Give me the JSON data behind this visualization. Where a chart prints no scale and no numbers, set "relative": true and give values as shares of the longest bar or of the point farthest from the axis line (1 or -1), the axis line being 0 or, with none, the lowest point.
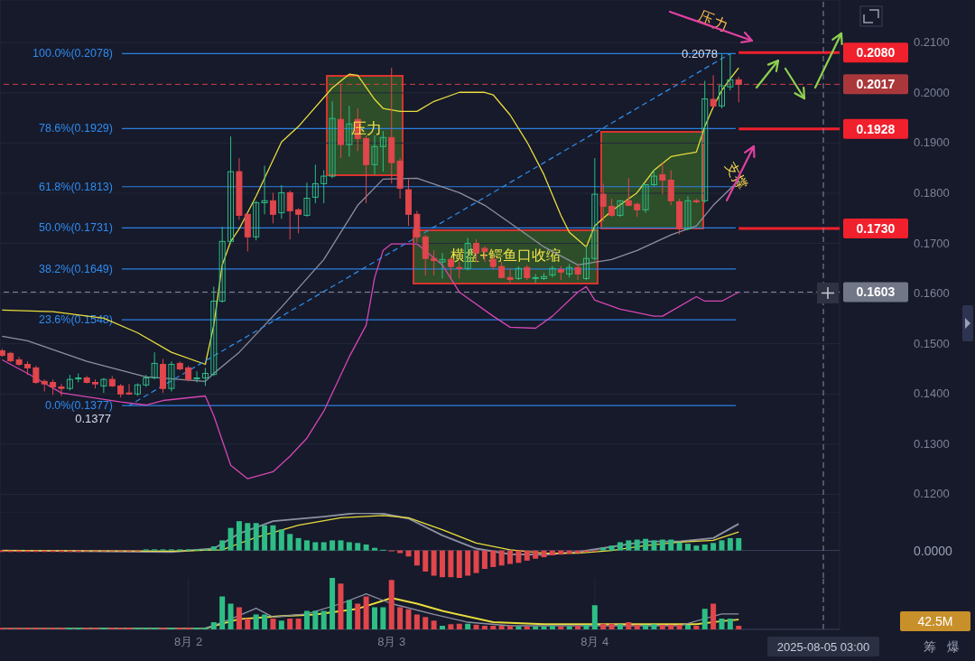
{
  "chart_data": [
    {
      "type": "candlestick",
      "tick_labels": "y",
      "grid": true,
      "xlim": [
        "2025-08-01T01:45",
        "2025-08-05T04:55"
      ],
      "xticks": [
        {
          "value": "2025-08-02",
          "label": null
        },
        {
          "value": "2025-08-03",
          "label": null
        },
        {
          "value": "2025-08-04",
          "label": null
        }
      ],
      "ylim": [
        0.1163,
        0.2185
      ],
      "yticks": [
        {
          "value": 0.12,
          "label": "0.1200"
        },
        {
          "value": 0.13,
          "label": "0.1300"
        },
        {
          "value": 0.14,
          "label": "0.1400"
        },
        {
          "value": 0.15,
          "label": "0.1500"
        },
        {
          "value": 0.16,
          "label": "0.1600"
        },
        {
          "value": 0.17,
          "label": "0.1700"
        },
        {
          "value": 0.18,
          "label": "0.1800"
        },
        {
          "value": 0.19,
          "label": "0.1900"
        },
        {
          "value": 0.2,
          "label": "0.2000"
        },
        {
          "value": 0.21,
          "label": "0.2100"
        }
      ],
      "x": [
        "2025-08-01T02:00",
        "2025-08-01T03:00",
        "2025-08-01T04:00",
        "2025-08-01T05:00",
        "2025-08-01T06:00",
        "2025-08-01T07:00",
        "2025-08-01T08:00",
        "2025-08-01T09:00",
        "2025-08-01T10:00",
        "2025-08-01T11:00",
        "2025-08-01T12:00",
        "2025-08-01T13:00",
        "2025-08-01T14:00",
        "2025-08-01T15:00",
        "2025-08-01T16:00",
        "2025-08-01T17:00",
        "2025-08-01T18:00",
        "2025-08-01T19:00",
        "2025-08-01T20:00",
        "2025-08-01T21:00",
        "2025-08-01T22:00",
        "2025-08-01T23:00",
        "2025-08-02T00:00",
        "2025-08-02T01:00",
        "2025-08-02T02:00",
        "2025-08-02T03:00",
        "2025-08-02T04:00",
        "2025-08-02T05:00",
        "2025-08-02T06:00",
        "2025-08-02T07:00",
        "2025-08-02T08:00",
        "2025-08-02T09:00",
        "2025-08-02T10:00",
        "2025-08-02T11:00",
        "2025-08-02T12:00",
        "2025-08-02T13:00",
        "2025-08-02T14:00",
        "2025-08-02T15:00",
        "2025-08-02T16:00",
        "2025-08-02T17:00",
        "2025-08-02T18:00",
        "2025-08-02T19:00",
        "2025-08-02T20:00",
        "2025-08-02T21:00",
        "2025-08-02T22:00",
        "2025-08-02T23:00",
        "2025-08-03T00:00",
        "2025-08-03T01:00",
        "2025-08-03T02:00",
        "2025-08-03T03:00",
        "2025-08-03T04:00",
        "2025-08-03T05:00",
        "2025-08-03T06:00",
        "2025-08-03T07:00",
        "2025-08-03T08:00",
        "2025-08-03T09:00",
        "2025-08-03T10:00",
        "2025-08-03T11:00",
        "2025-08-03T12:00",
        "2025-08-03T13:00",
        "2025-08-03T14:00",
        "2025-08-03T15:00",
        "2025-08-03T16:00",
        "2025-08-03T17:00",
        "2025-08-03T18:00",
        "2025-08-03T19:00",
        "2025-08-03T20:00",
        "2025-08-03T21:00",
        "2025-08-03T22:00",
        "2025-08-03T23:00",
        "2025-08-04T00:00",
        "2025-08-04T01:00",
        "2025-08-04T02:00",
        "2025-08-04T03:00",
        "2025-08-04T04:00",
        "2025-08-04T05:00",
        "2025-08-04T06:00",
        "2025-08-04T07:00",
        "2025-08-04T08:00",
        "2025-08-04T09:00",
        "2025-08-04T10:00",
        "2025-08-04T11:00",
        "2025-08-04T12:00",
        "2025-08-04T13:00",
        "2025-08-04T14:00",
        "2025-08-04T15:00",
        "2025-08-04T16:00",
        "2025-08-04T17:00"
      ],
      "ohlc": [
        [
          0.1486,
          0.149,
          0.1474,
          0.1477
        ],
        [
          0.1481,
          0.1484,
          0.1463,
          0.1466
        ],
        [
          0.1468,
          0.1474,
          0.1456,
          0.1459
        ],
        [
          0.1459,
          0.1465,
          0.1438,
          0.1452
        ],
        [
          0.1452,
          0.1456,
          0.142,
          0.1423
        ],
        [
          0.1425,
          0.1429,
          0.1405,
          0.142
        ],
        [
          0.1423,
          0.1429,
          0.1398,
          0.1414
        ],
        [
          0.1414,
          0.142,
          0.1396,
          0.1411
        ],
        [
          0.1411,
          0.1438,
          0.1407,
          0.1429
        ],
        [
          0.143,
          0.1441,
          0.1423,
          0.1432
        ],
        [
          0.1432,
          0.1436,
          0.1421,
          0.1423
        ],
        [
          0.1423,
          0.1429,
          0.1411,
          0.142
        ],
        [
          0.1416,
          0.1432,
          0.1402,
          0.1429
        ],
        [
          0.1429,
          0.1436,
          0.1414,
          0.1416
        ],
        [
          0.1416,
          0.142,
          0.1393,
          0.14
        ],
        [
          0.1402,
          0.142,
          0.1398,
          0.14
        ],
        [
          0.14,
          0.1421,
          0.1396,
          0.1418
        ],
        [
          0.1418,
          0.1438,
          0.1414,
          0.1432
        ],
        [
          0.1432,
          0.1483,
          0.1429,
          0.1461
        ],
        [
          0.1459,
          0.147,
          0.1402,
          0.1411
        ],
        [
          0.1411,
          0.1465,
          0.1405,
          0.1459
        ],
        [
          0.1461,
          0.1465,
          0.1447,
          0.145
        ],
        [
          0.1452,
          0.1456,
          0.1425,
          0.1429
        ],
        [
          0.143,
          0.1445,
          0.1423,
          0.1432
        ],
        [
          0.1432,
          0.1452,
          0.1416,
          0.1441
        ],
        [
          0.1439,
          0.1614,
          0.1436,
          0.1585
        ],
        [
          0.1585,
          0.1733,
          0.1582,
          0.1704
        ],
        [
          0.1704,
          0.1913,
          0.1699,
          0.1843
        ],
        [
          0.1843,
          0.187,
          0.1747,
          0.1756
        ],
        [
          0.1758,
          0.1761,
          0.1684,
          0.1713
        ],
        [
          0.1713,
          0.1785,
          0.1706,
          0.1781
        ],
        [
          0.1781,
          0.1855,
          0.1758,
          0.1785
        ],
        [
          0.1785,
          0.1801,
          0.174,
          0.1758
        ],
        [
          0.1761,
          0.1816,
          0.1749,
          0.1801
        ],
        [
          0.1801,
          0.1805,
          0.1708,
          0.1765
        ],
        [
          0.1767,
          0.177,
          0.172,
          0.1758
        ],
        [
          0.1756,
          0.1821,
          0.1753,
          0.179
        ],
        [
          0.1792,
          0.1857,
          0.178,
          0.1819
        ],
        [
          0.1819,
          0.1846,
          0.178,
          0.1834
        ],
        [
          0.1834,
          0.1983,
          0.183,
          0.1949
        ],
        [
          0.1947,
          0.2017,
          0.187,
          0.1897
        ],
        [
          0.1897,
          0.1974,
          0.1873,
          0.1938
        ],
        [
          0.1947,
          0.1969,
          0.1884,
          0.1909
        ],
        [
          0.1909,
          0.1915,
          0.178,
          0.1857
        ],
        [
          0.1857,
          0.1915,
          0.1837,
          0.1893
        ],
        [
          0.1893,
          0.1924,
          0.1843,
          0.1911
        ],
        [
          0.1911,
          0.205,
          0.1819,
          0.1861
        ],
        [
          0.1864,
          0.187,
          0.1789,
          0.181
        ],
        [
          0.1807,
          0.1828,
          0.1735,
          0.1758
        ],
        [
          0.1758,
          0.1765,
          0.1702,
          0.1713
        ],
        [
          0.1713,
          0.1717,
          0.1636,
          0.167
        ],
        [
          0.167,
          0.1686,
          0.1636,
          0.1666
        ],
        [
          0.1663,
          0.1681,
          0.163,
          0.1668
        ],
        [
          0.1668,
          0.1672,
          0.163,
          0.1654
        ],
        [
          0.1652,
          0.1663,
          0.163,
          0.165
        ],
        [
          0.165,
          0.1711,
          0.1646,
          0.17
        ],
        [
          0.17,
          0.1708,
          0.1663,
          0.1681
        ],
        [
          0.169,
          0.1695,
          0.1663,
          0.1684
        ],
        [
          0.1668,
          0.1675,
          0.1648,
          0.1654
        ],
        [
          0.1654,
          0.1663,
          0.163,
          0.1632
        ],
        [
          0.1632,
          0.165,
          0.1621,
          0.1628
        ],
        [
          0.163,
          0.1654,
          0.1627,
          0.165
        ],
        [
          0.1652,
          0.1657,
          0.1627,
          0.1632
        ],
        [
          0.163,
          0.1639,
          0.1621,
          0.1632
        ],
        [
          0.163,
          0.1641,
          0.1627,
          0.1634
        ],
        [
          0.1637,
          0.1655,
          0.1632,
          0.165
        ],
        [
          0.1648,
          0.1655,
          0.1627,
          0.1643
        ],
        [
          0.1639,
          0.1659,
          0.1632,
          0.1652
        ],
        [
          0.1652,
          0.1659,
          0.1627,
          0.1639
        ],
        [
          0.163,
          0.1695,
          0.1627,
          0.167
        ],
        [
          0.167,
          0.187,
          0.1666,
          0.1798
        ],
        [
          0.1798,
          0.1819,
          0.1744,
          0.1774
        ],
        [
          0.1774,
          0.1789,
          0.1753,
          0.1756
        ],
        [
          0.1756,
          0.1785,
          0.1753,
          0.1785
        ],
        [
          0.1785,
          0.183,
          0.1774,
          0.1776
        ],
        [
          0.1778,
          0.1781,
          0.1753,
          0.1767
        ],
        [
          0.1767,
          0.1817,
          0.1761,
          0.1817
        ],
        [
          0.1817,
          0.1848,
          0.1814,
          0.1834
        ],
        [
          0.1837,
          0.1861,
          0.1798,
          0.1826
        ],
        [
          0.1826,
          0.1846,
          0.1776,
          0.1785
        ],
        [
          0.1783,
          0.1789,
          0.1718,
          0.1729
        ],
        [
          0.1729,
          0.1794,
          0.1726,
          0.1785
        ],
        [
          0.1785,
          0.1789,
          0.178,
          0.1783
        ],
        [
          0.1785,
          0.2024,
          0.1781,
          0.1988
        ],
        [
          0.1987,
          0.2035,
          0.1969,
          0.1974
        ],
        [
          0.1974,
          0.2077,
          0.1969,
          0.2014
        ],
        [
          0.2012,
          0.2078,
          0.2005,
          0.2026
        ],
        [
          0.2026,
          0.2032,
          0.1981,
          0.2017
        ]
      ],
      "series": [
        {
          "type": "line",
          "color": "#e8dc3c",
          "x": [
            "2025-08-01T02:00",
            "2025-08-01T08:00",
            "2025-08-01T14:00",
            "2025-08-01T18:00",
            "2025-08-01T22:00",
            "2025-08-02T02:00",
            "2025-08-02T03:00",
            "2025-08-02T04:00",
            "2025-08-02T05:00",
            "2025-08-02T06:00",
            "2025-08-02T08:00",
            "2025-08-02T11:00",
            "2025-08-02T13:00",
            "2025-08-02T17:00",
            "2025-08-02T19:00",
            "2025-08-02T20:00",
            "2025-08-02T22:00",
            "2025-08-02T23:00",
            "2025-08-03T01:00",
            "2025-08-03T03:00",
            "2025-08-03T05:00",
            "2025-08-03T08:00",
            "2025-08-03T11:00",
            "2025-08-03T12:00",
            "2025-08-03T14:00",
            "2025-08-03T16:00",
            "2025-08-03T18:00",
            "2025-08-03T20:00",
            "2025-08-03T21:00",
            "2025-08-03T23:00",
            "2025-08-04T00:00",
            "2025-08-04T02:00",
            "2025-08-04T05:00",
            "2025-08-04T07:00",
            "2025-08-04T09:00",
            "2025-08-04T12:00",
            "2025-08-04T13:00",
            "2025-08-04T14:00",
            "2025-08-04T15:00",
            "2025-08-04T16:00",
            "2025-08-04T17:00"
          ],
          "values": [
            0.1567,
            0.1564,
            0.1551,
            0.1522,
            0.1483,
            0.1459,
            0.1537,
            0.1657,
            0.1704,
            0.1729,
            0.1794,
            0.1902,
            0.1933,
            0.201,
            0.2037,
            0.2035,
            0.1987,
            0.1969,
            0.1963,
            0.1963,
            0.1983,
            0.2001,
            0.2001,
            0.1996,
            0.1956,
            0.1902,
            0.1837,
            0.1756,
            0.1722,
            0.1693,
            0.1735,
            0.1765,
            0.1801,
            0.1846,
            0.1873,
            0.1882,
            0.1933,
            0.1972,
            0.2005,
            0.2028,
            0.205
          ]
        },
        {
          "type": "line",
          "color": "#8c90a0",
          "x": [
            "2025-08-01T02:00",
            "2025-08-01T05:00",
            "2025-08-01T12:00",
            "2025-08-01T19:00",
            "2025-08-02T02:00",
            "2025-08-02T03:00",
            "2025-08-02T06:00",
            "2025-08-02T07:00",
            "2025-08-02T11:00",
            "2025-08-02T16:00",
            "2025-08-02T20:00",
            "2025-08-02T23:00",
            "2025-08-03T03:00",
            "2025-08-03T08:00",
            "2025-08-03T11:00",
            "2025-08-03T15:00",
            "2025-08-03T18:00",
            "2025-08-03T22:00",
            "2025-08-04T02:00",
            "2025-08-04T05:00",
            "2025-08-04T09:00",
            "2025-08-04T12:00",
            "2025-08-04T14:00",
            "2025-08-04T17:00"
          ],
          "values": [
            0.1515,
            0.1506,
            0.1465,
            0.1434,
            0.1425,
            0.1441,
            0.1483,
            0.1501,
            0.1573,
            0.1668,
            0.1776,
            0.1828,
            0.183,
            0.1801,
            0.1776,
            0.1729,
            0.1693,
            0.1657,
            0.1668,
            0.1686,
            0.1717,
            0.1735,
            0.1776,
            0.1825
          ]
        },
        {
          "type": "line",
          "color": "#d646b4",
          "x": [
            "2025-08-01T02:00",
            "2025-08-01T05:00",
            "2025-08-01T09:00",
            "2025-08-01T16:00",
            "2025-08-01T19:00",
            "2025-08-01T21:00",
            "2025-08-02T02:00",
            "2025-08-02T03:00",
            "2025-08-02T05:00",
            "2025-08-02T07:00",
            "2025-08-02T10:00",
            "2025-08-02T12:00",
            "2025-08-02T14:00",
            "2025-08-02T16:00",
            "2025-08-02T19:00",
            "2025-08-02T21:00",
            "2025-08-02T22:00",
            "2025-08-02T23:00",
            "2025-08-03T00:00",
            "2025-08-03T03:00",
            "2025-08-03T06:00",
            "2025-08-03T08:00",
            "2025-08-03T12:00",
            "2025-08-03T14:00",
            "2025-08-03T17:00",
            "2025-08-03T19:00",
            "2025-08-03T22:00",
            "2025-08-03T23:00",
            "2025-08-04T00:00",
            "2025-08-04T03:00",
            "2025-08-04T07:00",
            "2025-08-04T08:00",
            "2025-08-04T12:00",
            "2025-08-04T13:00",
            "2025-08-04T15:00",
            "2025-08-04T17:00"
          ],
          "values": [
            0.1468,
            0.1441,
            0.1402,
            0.1384,
            0.1378,
            0.1387,
            0.1396,
            0.1357,
            0.1258,
            0.1231,
            0.1245,
            0.1276,
            0.1312,
            0.1366,
            0.1474,
            0.1537,
            0.1632,
            0.1686,
            0.1699,
            0.1699,
            0.1657,
            0.1603,
            0.1555,
            0.1533,
            0.1531,
            0.1555,
            0.1603,
            0.1614,
            0.1587,
            0.1569,
            0.1555,
            0.1555,
            0.1594,
            0.1585,
            0.1585,
            0.1603
          ]
        },
        {
          "type": "line",
          "color": "#2f8be6",
          "line_style": "dashed",
          "x": [
            "2025-08-01T17:00",
            "2025-08-04T16:00"
          ],
          "values": [
            0.1377,
            0.2078
          ]
        }
      ],
      "ref_lines": [
        {
          "axis": "y",
          "value": 0.2078,
          "label": "100.0%(0.2078)",
          "color": "#2d7fe0"
        },
        {
          "axis": "y",
          "value": 0.1929,
          "label": "78.6%(0.1929)",
          "color": "#2d7fe0"
        },
        {
          "axis": "y",
          "value": 0.1813,
          "label": "61.8%(0.1813)",
          "color": "#2d7fe0"
        },
        {
          "axis": "y",
          "value": 0.1731,
          "label": "50.0%(0.1731)",
          "color": "#2d7fe0"
        },
        {
          "axis": "y",
          "value": 0.1649,
          "label": "38.2%(0.1649)",
          "color": "#2d7fe0"
        },
        {
          "axis": "y",
          "value": 0.1548,
          "label": "23.6%(0.1548)",
          "color": "#2d7fe0"
        },
        {
          "axis": "y",
          "value": 0.1377,
          "label": "0.0%(0.1377)",
          "color": "#2d7fe0"
        },
        {
          "axis": "y",
          "value": 0.208,
          "label": "0.2080",
          "color": "#f0202c"
        },
        {
          "axis": "y",
          "value": 0.1928,
          "label": "0.1928",
          "color": "#f0202c"
        },
        {
          "axis": "y",
          "value": 0.173,
          "label": "0.1730",
          "color": "#f0202c"
        },
        {
          "axis": "y",
          "value": 0.2017,
          "label": "0.2017",
          "color": "#d04040",
          "line_style": "dashed"
        },
        {
          "axis": "y",
          "value": 0.1603,
          "label": "0.1603",
          "color": "#8a8fa0",
          "line_style": "dashed"
        },
        {
          "axis": "x",
          "value": "2025-08-05T03:00",
          "color": "#8a8fa0",
          "line_style": "dashed"
        }
      ],
      "annotations": [
        {
          "text": "0.2078",
          "x": "2025-08-04T16:00",
          "y": 0.2078
        },
        {
          "text": "0.1377",
          "x": "2025-08-01T17:00",
          "y": 0.1377
        },
        {
          "text": "压力",
          "x": "2025-08-02T21:00",
          "y": 0.193
        },
        "横盘+鳄鱼口收缩",
        "压力",
        "支撑"
      ]
    },
    {
      "type": "bar",
      "relative": true,
      "tick_labels": false,
      "grid": "x",
      "xlim": [
        "2025-08-01T01:45",
        "2025-08-05T04:55"
      ],
      "xticks": [
        {
          "value": "2025-08-02",
          "label": null
        },
        {
          "value": "2025-08-03",
          "label": null
        },
        {
          "value": "2025-08-04",
          "label": null
        }
      ],
      "x": [
        "2025-08-01T02:00",
        "2025-08-01T03:00",
        "2025-08-01T04:00",
        "2025-08-01T05:00",
        "2025-08-01T06:00",
        "2025-08-01T07:00",
        "2025-08-01T08:00",
        "2025-08-01T09:00",
        "2025-08-01T10:00",
        "2025-08-01T11:00",
        "2025-08-01T12:00",
        "2025-08-01T13:00",
        "2025-08-01T14:00",
        "2025-08-01T15:00",
        "2025-08-01T16:00",
        "2025-08-01T17:00",
        "2025-08-01T18:00",
        "2025-08-01T19:00",
        "2025-08-01T20:00",
        "2025-08-01T21:00",
        "2025-08-01T22:00",
        "2025-08-01T23:00",
        "2025-08-02T00:00",
        "2025-08-02T01:00",
        "2025-08-02T02:00",
        "2025-08-02T03:00",
        "2025-08-02T04:00",
        "2025-08-02T05:00",
        "2025-08-02T06:00",
        "2025-08-02T07:00",
        "2025-08-02T08:00",
        "2025-08-02T09:00",
        "2025-08-02T10:00",
        "2025-08-02T11:00",
        "2025-08-02T12:00",
        "2025-08-02T13:00",
        "2025-08-02T14:00",
        "2025-08-02T15:00",
        "2025-08-02T16:00",
        "2025-08-02T17:00",
        "2025-08-02T18:00",
        "2025-08-02T19:00",
        "2025-08-02T20:00",
        "2025-08-02T21:00",
        "2025-08-02T22:00",
        "2025-08-02T23:00",
        "2025-08-03T00:00",
        "2025-08-03T01:00",
        "2025-08-03T02:00",
        "2025-08-03T03:00",
        "2025-08-03T04:00",
        "2025-08-03T05:00",
        "2025-08-03T06:00",
        "2025-08-03T07:00",
        "2025-08-03T08:00",
        "2025-08-03T09:00",
        "2025-08-03T10:00",
        "2025-08-03T11:00",
        "2025-08-03T12:00",
        "2025-08-03T13:00",
        "2025-08-03T14:00",
        "2025-08-03T15:00",
        "2025-08-03T16:00",
        "2025-08-03T17:00",
        "2025-08-03T18:00",
        "2025-08-03T19:00",
        "2025-08-03T20:00",
        "2025-08-03T21:00",
        "2025-08-03T22:00",
        "2025-08-03T23:00",
        "2025-08-04T00:00",
        "2025-08-04T01:00",
        "2025-08-04T02:00",
        "2025-08-04T03:00",
        "2025-08-04T04:00",
        "2025-08-04T05:00",
        "2025-08-04T06:00",
        "2025-08-04T07:00",
        "2025-08-04T08:00",
        "2025-08-04T09:00",
        "2025-08-04T10:00",
        "2025-08-04T11:00",
        "2025-08-04T12:00",
        "2025-08-04T13:00",
        "2025-08-04T14:00",
        "2025-08-04T15:00",
        "2025-08-04T16:00",
        "2025-08-04T17:00"
      ],
      "series": [
        {
          "type": "bar",
          "values": [
            -0.04,
            -0.04,
            -0.04,
            -0.04,
            -0.04,
            -0.04,
            -0.04,
            -0.04,
            -0.04,
            -0.04,
            -0.02,
            -0.02,
            -0.02,
            -0.02,
            -0.02,
            -0.02,
            -0.02,
            0.03,
            0.03,
            0.03,
            0.03,
            0.03,
            0.03,
            0.03,
            0.03,
            0.11,
            0.27,
            0.6,
            0.78,
            0.73,
            0.73,
            0.67,
            0.67,
            0.56,
            0.44,
            0.33,
            0.27,
            0.22,
            0.22,
            0.27,
            0.27,
            0.22,
            0.2,
            0.16,
            0.07,
            0.02,
            -0.02,
            -0.07,
            -0.16,
            -0.4,
            -0.56,
            -0.67,
            -0.71,
            -0.71,
            -0.73,
            -0.67,
            -0.6,
            -0.49,
            -0.44,
            -0.4,
            -0.36,
            -0.33,
            -0.27,
            -0.22,
            -0.18,
            -0.13,
            -0.11,
            -0.09,
            -0.07,
            -0.04,
            -0.02,
            0.07,
            0.13,
            0.22,
            0.27,
            0.29,
            0.31,
            0.27,
            0.29,
            0.29,
            0.22,
            0.18,
            0.13,
            0.16,
            0.2,
            0.27,
            0.33,
            0.33
          ],
          "colors": [
            "#e0464b",
            "#e0464b",
            "#e0464b",
            "#e0464b",
            "#e0464b",
            "#e0464b",
            "#e0464b",
            "#e0464b",
            "#e0464b",
            "#e0464b",
            "#e0464b",
            "#e0464b",
            "#e0464b",
            "#e0464b",
            "#e0464b",
            "#e0464b",
            "#e0464b",
            "#2ebd85",
            "#2ebd85",
            "#2ebd85",
            "#2ebd85",
            "#2ebd85",
            "#2ebd85",
            "#2ebd85",
            "#2ebd85",
            "#2ebd85",
            "#2ebd85",
            "#2ebd85",
            "#2ebd85",
            "#2ebd85",
            "#2ebd85",
            "#2ebd85",
            "#2ebd85",
            "#2ebd85",
            "#2ebd85",
            "#2ebd85",
            "#2ebd85",
            "#2ebd85",
            "#2ebd85",
            "#2ebd85",
            "#2ebd85",
            "#2ebd85",
            "#2ebd85",
            "#2ebd85",
            "#2ebd85",
            "#2ebd85",
            "#e0464b",
            "#e0464b",
            "#e0464b",
            "#e0464b",
            "#e0464b",
            "#e0464b",
            "#e0464b",
            "#e0464b",
            "#e0464b",
            "#e0464b",
            "#e0464b",
            "#e0464b",
            "#e0464b",
            "#e0464b",
            "#e0464b",
            "#e0464b",
            "#e0464b",
            "#e0464b",
            "#e0464b",
            "#e0464b",
            "#e0464b",
            "#e0464b",
            "#e0464b",
            "#e0464b",
            "#e0464b",
            "#2ebd85",
            "#2ebd85",
            "#2ebd85",
            "#2ebd85",
            "#2ebd85",
            "#2ebd85",
            "#2ebd85",
            "#2ebd85",
            "#2ebd85",
            "#2ebd85",
            "#2ebd85",
            "#2ebd85",
            "#2ebd85",
            "#2ebd85",
            "#2ebd85",
            "#2ebd85",
            "#2ebd85"
          ]
        },
        {
          "type": "line",
          "color": "#8c90a0",
          "x": [
            "2025-08-01T02:00",
            "2025-08-01T22:00",
            "2025-08-02T03:00",
            "2025-08-02T06:00",
            "2025-08-02T10:00",
            "2025-08-02T16:00",
            "2025-08-02T20:00",
            "2025-08-02T23:00",
            "2025-08-03T02:00",
            "2025-08-03T06:00",
            "2025-08-03T10:00",
            "2025-08-03T14:00",
            "2025-08-03T18:00",
            "2025-08-03T22:00",
            "2025-08-04T02:00",
            "2025-08-04T06:00",
            "2025-08-04T10:00",
            "2025-08-04T14:00",
            "2025-08-04T17:00"
          ],
          "values": [
            0,
            -0.04,
            0.05,
            0.45,
            0.78,
            0.9,
            1,
            0.98,
            0.85,
            0.4,
            0.05,
            -0.1,
            -0.11,
            -0.04,
            0.1,
            0.24,
            0.24,
            0.33,
            0.71
          ]
        },
        {
          "type": "line",
          "color": "#e8dc3c",
          "x": [
            "2025-08-01T02:00",
            "2025-08-01T22:00",
            "2025-08-02T04:00",
            "2025-08-02T08:00",
            "2025-08-02T13:00",
            "2025-08-02T18:00",
            "2025-08-02T23:00",
            "2025-08-03T02:00",
            "2025-08-03T06:00",
            "2025-08-03T10:00",
            "2025-08-03T14:00",
            "2025-08-03T18:00",
            "2025-08-03T22:00",
            "2025-08-04T02:00",
            "2025-08-04T06:00",
            "2025-08-04T10:00",
            "2025-08-04T14:00",
            "2025-08-04T17:00"
          ],
          "values": [
            0,
            -0.02,
            0.02,
            0.35,
            0.67,
            0.87,
            0.93,
            0.87,
            0.55,
            0.2,
            0.02,
            -0.07,
            -0.07,
            0,
            0.13,
            0.22,
            0.27,
            0.49
          ]
        }
      ],
      "ref_lines": [
        {
          "axis": "x",
          "value": "2025-08-05T03:00",
          "color": "#8a8fa0",
          "line_style": "dashed"
        }
      ],
      "annotations": [
        "0.0000"
      ]
    },
    {
      "type": "bar",
      "relative": true,
      "tick_labels": "x",
      "grid": "x",
      "xlim": [
        "2025-08-01T01:45",
        "2025-08-05T04:55"
      ],
      "xticks": [
        {
          "value": "2025-08-02",
          "label": "8月 2"
        },
        {
          "value": "2025-08-03",
          "label": "8月 3"
        },
        {
          "value": "2025-08-04",
          "label": "8月 4"
        }
      ],
      "x": [
        "2025-08-01T02:00",
        "2025-08-01T03:00",
        "2025-08-01T04:00",
        "2025-08-01T05:00",
        "2025-08-01T06:00",
        "2025-08-01T07:00",
        "2025-08-01T08:00",
        "2025-08-01T09:00",
        "2025-08-01T10:00",
        "2025-08-01T11:00",
        "2025-08-01T12:00",
        "2025-08-01T13:00",
        "2025-08-01T14:00",
        "2025-08-01T15:00",
        "2025-08-01T16:00",
        "2025-08-01T17:00",
        "2025-08-01T18:00",
        "2025-08-01T19:00",
        "2025-08-01T20:00",
        "2025-08-01T21:00",
        "2025-08-01T22:00",
        "2025-08-01T23:00",
        "2025-08-02T00:00",
        "2025-08-02T01:00",
        "2025-08-02T02:00",
        "2025-08-02T03:00",
        "2025-08-02T04:00",
        "2025-08-02T05:00",
        "2025-08-02T06:00",
        "2025-08-02T07:00",
        "2025-08-02T08:00",
        "2025-08-02T09:00",
        "2025-08-02T10:00",
        "2025-08-02T11:00",
        "2025-08-02T12:00",
        "2025-08-02T13:00",
        "2025-08-02T14:00",
        "2025-08-02T15:00",
        "2025-08-02T16:00",
        "2025-08-02T17:00",
        "2025-08-02T18:00",
        "2025-08-02T19:00",
        "2025-08-02T20:00",
        "2025-08-02T21:00",
        "2025-08-02T22:00",
        "2025-08-02T23:00",
        "2025-08-03T00:00",
        "2025-08-03T01:00",
        "2025-08-03T02:00",
        "2025-08-03T03:00",
        "2025-08-03T04:00",
        "2025-08-03T05:00",
        "2025-08-03T06:00",
        "2025-08-03T07:00",
        "2025-08-03T08:00",
        "2025-08-03T09:00",
        "2025-08-03T10:00",
        "2025-08-03T11:00",
        "2025-08-03T12:00",
        "2025-08-03T13:00",
        "2025-08-03T14:00",
        "2025-08-03T15:00",
        "2025-08-03T16:00",
        "2025-08-03T17:00",
        "2025-08-03T18:00",
        "2025-08-03T19:00",
        "2025-08-03T20:00",
        "2025-08-03T21:00",
        "2025-08-03T22:00",
        "2025-08-03T23:00",
        "2025-08-04T00:00",
        "2025-08-04T01:00",
        "2025-08-04T02:00",
        "2025-08-04T03:00",
        "2025-08-04T04:00",
        "2025-08-04T05:00",
        "2025-08-04T06:00",
        "2025-08-04T07:00",
        "2025-08-04T08:00",
        "2025-08-04T09:00",
        "2025-08-04T10:00",
        "2025-08-04T11:00",
        "2025-08-04T12:00",
        "2025-08-04T13:00",
        "2025-08-04T14:00",
        "2025-08-04T15:00",
        "2025-08-04T16:00",
        "2025-08-04T17:00"
      ],
      "series": [
        {
          "type": "bar",
          "values": [
            0.03,
            0.03,
            0.03,
            0.03,
            0.03,
            0.03,
            0.03,
            0.03,
            0.03,
            0.03,
            0.03,
            0.03,
            0.03,
            0.03,
            0.03,
            0.03,
            0.03,
            0.03,
            0.03,
            0.03,
            0.03,
            0.03,
            0.03,
            0.03,
            0.03,
            0.14,
            0.64,
            0.5,
            0.43,
            0.21,
            0.29,
            0.29,
            0.21,
            0.17,
            0.21,
            0.21,
            0.36,
            0.36,
            0.36,
            1,
            0.89,
            0.57,
            0.5,
            0.64,
            0.43,
            0.43,
            0.96,
            0.43,
            0.39,
            0.29,
            0.24,
            0.17,
            0.07,
            0.1,
            0.11,
            0.11,
            0.09,
            0.07,
            0.07,
            0.07,
            0.07,
            0.06,
            0.06,
            0.06,
            0.06,
            0.07,
            0.06,
            0.06,
            0.07,
            0.09,
            0.47,
            0.11,
            0.11,
            0.1,
            0.14,
            0.09,
            0.09,
            0.1,
            0.09,
            0.09,
            0.09,
            0.09,
            0.07,
            0.4,
            0.5,
            0.21,
            0.21,
            0.07
          ],
          "colors": [
            "#e0464b",
            "#e0464b",
            "#e0464b",
            "#e0464b",
            "#e0464b",
            "#e0464b",
            "#e0464b",
            "#e0464b",
            "#2ebd85",
            "#2ebd85",
            "#e0464b",
            "#e0464b",
            "#2ebd85",
            "#e0464b",
            "#e0464b",
            "#e0464b",
            "#2ebd85",
            "#2ebd85",
            "#2ebd85",
            "#e0464b",
            "#2ebd85",
            "#e0464b",
            "#e0464b",
            "#2ebd85",
            "#2ebd85",
            "#2ebd85",
            "#2ebd85",
            "#2ebd85",
            "#e0464b",
            "#e0464b",
            "#2ebd85",
            "#2ebd85",
            "#e0464b",
            "#2ebd85",
            "#e0464b",
            "#e0464b",
            "#2ebd85",
            "#2ebd85",
            "#2ebd85",
            "#2ebd85",
            "#e0464b",
            "#2ebd85",
            "#e0464b",
            "#e0464b",
            "#2ebd85",
            "#2ebd85",
            "#e0464b",
            "#e0464b",
            "#e0464b",
            "#e0464b",
            "#e0464b",
            "#e0464b",
            "#2ebd85",
            "#e0464b",
            "#e0464b",
            "#2ebd85",
            "#e0464b",
            "#e0464b",
            "#e0464b",
            "#e0464b",
            "#e0464b",
            "#2ebd85",
            "#e0464b",
            "#2ebd85",
            "#2ebd85",
            "#2ebd85",
            "#e0464b",
            "#2ebd85",
            "#e0464b",
            "#2ebd85",
            "#2ebd85",
            "#e0464b",
            "#e0464b",
            "#2ebd85",
            "#e0464b",
            "#e0464b",
            "#2ebd85",
            "#2ebd85",
            "#e0464b",
            "#e0464b",
            "#e0464b",
            "#2ebd85",
            "#e0464b",
            "#2ebd85",
            "#e0464b",
            "#2ebd85",
            "#2ebd85",
            "#e0464b"
          ]
        },
        {
          "type": "line",
          "color": "#e8dc3c",
          "x": [
            "2025-08-01T02:00",
            "2025-08-02T02:00",
            "2025-08-02T06:00",
            "2025-08-02T11:00",
            "2025-08-02T15:00",
            "2025-08-02T20:00",
            "2025-08-03T00:00",
            "2025-08-03T03:00",
            "2025-08-03T06:00",
            "2025-08-03T12:00",
            "2025-08-03T18:00",
            "2025-08-04T05:00",
            "2025-08-04T12:00",
            "2025-08-04T15:00",
            "2025-08-04T17:00"
          ],
          "values": [
            0.01,
            0.02,
            0.2,
            0.26,
            0.29,
            0.4,
            0.61,
            0.5,
            0.36,
            0.14,
            0.1,
            0.1,
            0.1,
            0.16,
            0.19
          ]
        },
        {
          "type": "line",
          "color": "#8c90a0",
          "x": [
            "2025-08-01T02:00",
            "2025-08-02T02:00",
            "2025-08-02T05:00",
            "2025-08-02T08:00",
            "2025-08-02T10:00",
            "2025-08-02T14:00",
            "2025-08-02T18:00",
            "2025-08-02T21:00",
            "2025-08-03T00:00",
            "2025-08-03T05:00",
            "2025-08-03T09:00",
            "2025-08-03T14:00",
            "2025-08-04T10:00",
            "2025-08-04T15:00",
            "2025-08-04T17:00"
          ],
          "values": [
            0.01,
            0.02,
            0.2,
            0.41,
            0.24,
            0.3,
            0.5,
            0.69,
            0.5,
            0.29,
            0.14,
            0.07,
            0.07,
            0.3,
            0.3
          ]
        }
      ],
      "ref_lines": [
        {
          "axis": "x",
          "value": "2025-08-05T03:00",
          "label": "2025-08-05 03:00",
          "color": "#8a8fa0",
          "line_style": "dashed"
        }
      ],
      "annotations": [
        "42.5M",
        "筹",
        "爆"
      ]
    }
  ]
}
